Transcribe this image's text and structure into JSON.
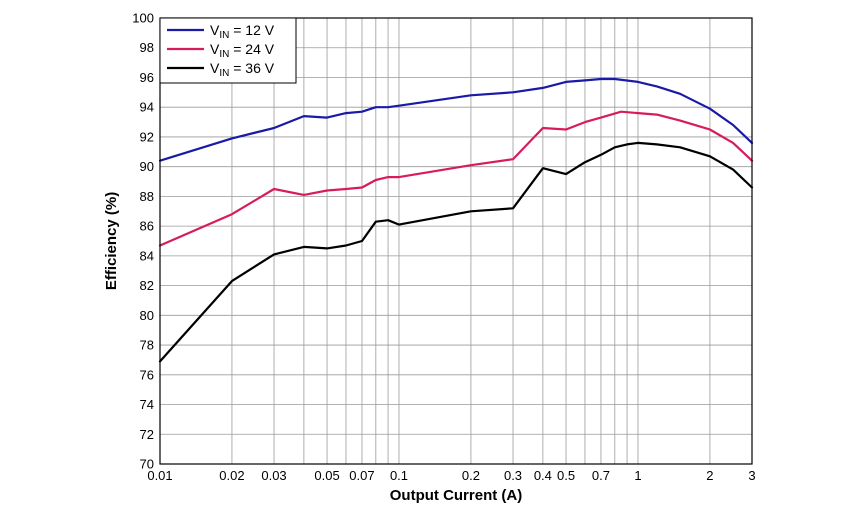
{
  "chart_data": {
    "type": "line",
    "xlabel": "Output Current (A)",
    "ylabel": "Efficiency (%)",
    "xscale": "log",
    "xlim": [
      0.01,
      3
    ],
    "ylim": [
      70,
      100
    ],
    "grid": true,
    "legend_position": "top-left",
    "x_tick_values": [
      0.01,
      0.02,
      0.03,
      0.05,
      0.07,
      0.1,
      0.2,
      0.3,
      0.4,
      0.5,
      0.7,
      1,
      2,
      3
    ],
    "x_tick_labels": [
      "0.01",
      "0.02",
      "0.03",
      "0.05",
      "0.07",
      "0.1",
      "0.2",
      "0.3",
      "0.4",
      "0.5",
      "0.7",
      "1",
      "2",
      "3"
    ],
    "x_minor_grid": [
      0.04,
      0.06,
      0.08,
      0.09,
      0.6,
      0.8,
      0.9
    ],
    "y_tick_values": [
      70,
      72,
      74,
      76,
      78,
      80,
      82,
      84,
      86,
      88,
      90,
      92,
      94,
      96,
      98,
      100
    ],
    "y_tick_labels": [
      "70",
      "72",
      "74",
      "76",
      "78",
      "80",
      "82",
      "84",
      "86",
      "88",
      "90",
      "92",
      "94",
      "96",
      "98",
      "100"
    ],
    "series": [
      {
        "name": "12 V",
        "legend_prefix": "V",
        "legend_subscript": "IN",
        "legend_suffix": " = 12 V",
        "color": "#1a1aa6",
        "x": [
          0.01,
          0.02,
          0.03,
          0.04,
          0.05,
          0.06,
          0.07,
          0.08,
          0.09,
          0.1,
          0.2,
          0.3,
          0.4,
          0.5,
          0.6,
          0.7,
          0.8,
          1.0,
          1.2,
          1.5,
          2.0,
          2.5,
          3.0
        ],
        "y": [
          90.4,
          91.9,
          92.6,
          93.4,
          93.3,
          93.6,
          93.7,
          94.0,
          94.0,
          94.1,
          94.8,
          95.0,
          95.3,
          95.7,
          95.8,
          95.9,
          95.9,
          95.7,
          95.4,
          94.9,
          93.9,
          92.8,
          91.6
        ]
      },
      {
        "name": "24 V",
        "legend_prefix": "V",
        "legend_subscript": "IN",
        "legend_suffix": " = 24 V",
        "color": "#d81b5f",
        "x": [
          0.01,
          0.02,
          0.03,
          0.04,
          0.05,
          0.06,
          0.07,
          0.08,
          0.09,
          0.1,
          0.2,
          0.3,
          0.4,
          0.5,
          0.6,
          0.7,
          0.85,
          1.0,
          1.2,
          1.5,
          2.0,
          2.5,
          3.0
        ],
        "y": [
          84.7,
          86.8,
          88.5,
          88.1,
          88.4,
          88.5,
          88.6,
          89.1,
          89.3,
          89.3,
          90.1,
          90.5,
          92.6,
          92.5,
          93.0,
          93.3,
          93.7,
          93.6,
          93.5,
          93.1,
          92.5,
          91.6,
          90.4
        ]
      },
      {
        "name": "36 V",
        "legend_prefix": "V",
        "legend_subscript": "IN",
        "legend_suffix": " = 36 V",
        "color": "#000000",
        "x": [
          0.01,
          0.02,
          0.03,
          0.04,
          0.05,
          0.06,
          0.07,
          0.08,
          0.09,
          0.1,
          0.2,
          0.3,
          0.4,
          0.5,
          0.6,
          0.7,
          0.8,
          0.9,
          1.0,
          1.2,
          1.5,
          2.0,
          2.5,
          3.0
        ],
        "y": [
          76.9,
          82.3,
          84.1,
          84.6,
          84.5,
          84.7,
          85.0,
          86.3,
          86.4,
          86.1,
          87.0,
          87.2,
          89.9,
          89.5,
          90.3,
          90.8,
          91.3,
          91.5,
          91.6,
          91.5,
          91.3,
          90.7,
          89.8,
          88.6
        ]
      }
    ]
  }
}
